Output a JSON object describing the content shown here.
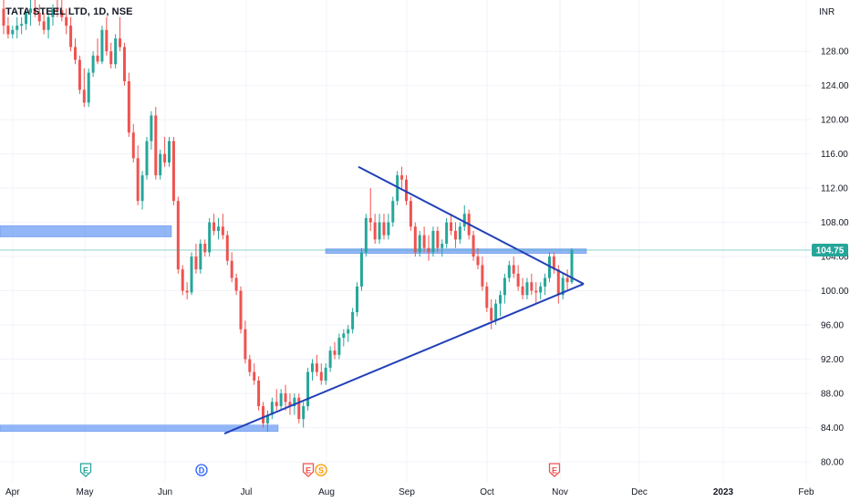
{
  "header": {
    "title": "TATA STEEL LTD, 1D, NSE",
    "currency": "INR"
  },
  "colors": {
    "up": "#26a69a",
    "down": "#ef5350",
    "zone": "#6f9ef4",
    "trendline": "#2140b8",
    "last_price_bg": "#26a69a",
    "last_price_line": "#26a69a"
  },
  "chart_data": {
    "type": "candlestick",
    "symbol": "TATA STEEL LTD",
    "interval": "1D",
    "exchange": "NSE",
    "ylim": [
      78.5,
      134
    ],
    "y_ticks": [
      "128.00",
      "124.00",
      "120.00",
      "116.00",
      "112.00",
      "108.00",
      "104.00",
      "100.00",
      "96.00",
      "92.00",
      "88.00",
      "84.00",
      "80.00"
    ],
    "x_ticks": [
      "Apr",
      "May",
      "Jun",
      "Jul",
      "Aug",
      "Sep",
      "Oct",
      "Nov",
      "Dec",
      "2023",
      "Feb"
    ],
    "last_price": "104.75",
    "events": [
      {
        "date": "May",
        "label": "E"
      },
      {
        "date": "Jun",
        "label": "D"
      },
      {
        "date": "Jul",
        "label": "E"
      },
      {
        "date": "Jul",
        "label": "S"
      },
      {
        "date": "Oct",
        "label": "E"
      }
    ],
    "zones": [
      {
        "from": "Apr",
        "to": "Jun",
        "low": 106.3,
        "high": 107.6
      },
      {
        "from": "Apr",
        "to": "Jul",
        "low": 83.7,
        "high": 84.3
      },
      {
        "from": "Aug",
        "to": "Nov",
        "low": 104.5,
        "high": 104.9
      }
    ],
    "trendlines": [
      {
        "from": [
          "Aug",
          114.5
        ],
        "to": [
          "Nov",
          100.8
        ]
      },
      {
        "from": [
          "Jun",
          83.3
        ],
        "to": [
          "Nov",
          100.8
        ]
      }
    ],
    "candles": [
      [
        133,
        134,
        130,
        131
      ],
      [
        131,
        132,
        129.5,
        130
      ],
      [
        130,
        131,
        129.5,
        130.5
      ],
      [
        130.5,
        132,
        129.5,
        131
      ],
      [
        131,
        132,
        130,
        131.2
      ],
      [
        131.2,
        133,
        130.5,
        132.5
      ],
      [
        132.5,
        134,
        131,
        133
      ],
      [
        133,
        134,
        132,
        132.5
      ],
      [
        132.5,
        133.5,
        131,
        131.5
      ],
      [
        131.5,
        132.5,
        130,
        130.5
      ],
      [
        130.5,
        132.5,
        129.5,
        132
      ],
      [
        132,
        133.5,
        131,
        133
      ],
      [
        133,
        134,
        132,
        132.8
      ],
      [
        132.8,
        134,
        131.5,
        132
      ],
      [
        132,
        133,
        130,
        131
      ],
      [
        131,
        132,
        128,
        128.5
      ],
      [
        128.5,
        129.5,
        126.5,
        127
      ],
      [
        127,
        127.5,
        123,
        123.5
      ],
      [
        123.5,
        126,
        121.5,
        122
      ],
      [
        122,
        126,
        121.5,
        125.5
      ],
      [
        125.5,
        128,
        125,
        127.5
      ],
      [
        127.5,
        129.5,
        126.5,
        126.8
      ],
      [
        126.8,
        131,
        126.5,
        130.5
      ],
      [
        130.5,
        132,
        127.5,
        128
      ],
      [
        128,
        129,
        126,
        126.5
      ],
      [
        126.5,
        130,
        126,
        129.5
      ],
      [
        129.5,
        132,
        128,
        128.5
      ],
      [
        128.5,
        129,
        124,
        124.5
      ],
      [
        124.5,
        125.5,
        118,
        118.5
      ],
      [
        118.5,
        119.5,
        115,
        115.5
      ],
      [
        115.5,
        117,
        110,
        110.5
      ],
      [
        110.5,
        114,
        109.5,
        113.5
      ],
      [
        113.5,
        118,
        113,
        117.5
      ],
      [
        117.5,
        121,
        116.5,
        120.5
      ],
      [
        120.5,
        121.5,
        113,
        113.5
      ],
      [
        113.5,
        116.5,
        113,
        116
      ],
      [
        116,
        118,
        114.5,
        115
      ],
      [
        115,
        118,
        114.5,
        117.5
      ],
      [
        117.5,
        118,
        110,
        110.5
      ],
      [
        110.5,
        111,
        102,
        102.5
      ],
      [
        102.5,
        103,
        99.5,
        100
      ],
      [
        100,
        101,
        99,
        99.8
      ],
      [
        99.8,
        104.5,
        99.5,
        104
      ],
      [
        104,
        105.5,
        102,
        102.5
      ],
      [
        102.5,
        106,
        102,
        105.5
      ],
      [
        105.5,
        106,
        104,
        104.5
      ],
      [
        104.5,
        108.5,
        104,
        108
      ],
      [
        108,
        109,
        106.5,
        107
      ],
      [
        107,
        108.5,
        106,
        107.5
      ],
      [
        107.5,
        109,
        106,
        106.5
      ],
      [
        106.5,
        107,
        103,
        103.5
      ],
      [
        103.5,
        104.5,
        101,
        101.5
      ],
      [
        101.5,
        102,
        99.5,
        100
      ],
      [
        100,
        100.5,
        95,
        95.5
      ],
      [
        95.5,
        96.5,
        91.5,
        92
      ],
      [
        92,
        92.5,
        90,
        90.5
      ],
      [
        90.5,
        91.5,
        89,
        89.5
      ],
      [
        89.5,
        90,
        86,
        86.5
      ],
      [
        86.5,
        87,
        84,
        84.5
      ],
      [
        84.5,
        86,
        83.5,
        85.5
      ],
      [
        85.5,
        87.5,
        85,
        87
      ],
      [
        87,
        88.5,
        86,
        86.5
      ],
      [
        86.5,
        88.5,
        86,
        88
      ],
      [
        88,
        89,
        86,
        87
      ],
      [
        87,
        88,
        85.5,
        86.5
      ],
      [
        86.5,
        88,
        85.5,
        87.5
      ],
      [
        87.5,
        88,
        84.5,
        85
      ],
      [
        85,
        87,
        84,
        86.5
      ],
      [
        86.5,
        91,
        86,
        90.5
      ],
      [
        90.5,
        92,
        89.5,
        91.5
      ],
      [
        91.5,
        92.5,
        90,
        90.5
      ],
      [
        90.5,
        91.5,
        89,
        89.5
      ],
      [
        89.5,
        91.5,
        89,
        91
      ],
      [
        91,
        93.5,
        90.5,
        93
      ],
      [
        93,
        94,
        92,
        92.5
      ],
      [
        92.5,
        95,
        92,
        94.5
      ],
      [
        94.5,
        95.5,
        93.5,
        95
      ],
      [
        95,
        96,
        94,
        95.5
      ],
      [
        95.5,
        98,
        95,
        97.5
      ],
      [
        97.5,
        101,
        97,
        100.5
      ],
      [
        100.5,
        105,
        100,
        104.5
      ],
      [
        104.5,
        109,
        104,
        108.5
      ],
      [
        108.5,
        112,
        107,
        108
      ],
      [
        108,
        109,
        105.5,
        106
      ],
      [
        106,
        109,
        105.5,
        108
      ],
      [
        108,
        109,
        106,
        106.5
      ],
      [
        106.5,
        109,
        106,
        108
      ],
      [
        108,
        111,
        107.5,
        110.5
      ],
      [
        110.5,
        114,
        110,
        113.5
      ],
      [
        113.5,
        114.5,
        112,
        113
      ],
      [
        113,
        113.5,
        110,
        110.5
      ],
      [
        110.5,
        111,
        107,
        107.5
      ],
      [
        107.5,
        108,
        104,
        104.5
      ],
      [
        104.5,
        107,
        104,
        106.5
      ],
      [
        106.5,
        107.5,
        104.5,
        105
      ],
      [
        105,
        106.5,
        103.5,
        104.5
      ],
      [
        104.5,
        107.5,
        104,
        107
      ],
      [
        107,
        107.5,
        104.5,
        105
      ],
      [
        105,
        106,
        104,
        105.5
      ],
      [
        105.5,
        108.5,
        105,
        108
      ],
      [
        108,
        109,
        106.5,
        107
      ],
      [
        107,
        108,
        105,
        106
      ],
      [
        106,
        108,
        105.5,
        107.5
      ],
      [
        107.5,
        110,
        107,
        109
      ],
      [
        109,
        109.5,
        106,
        106.5
      ],
      [
        106.5,
        107,
        103.5,
        104
      ],
      [
        104,
        105,
        102.5,
        103
      ],
      [
        103,
        104,
        100,
        100.5
      ],
      [
        100.5,
        101,
        97.5,
        98
      ],
      [
        98,
        99,
        95.5,
        96.5
      ],
      [
        96.5,
        99,
        96,
        98.5
      ],
      [
        98.5,
        100,
        97,
        99.5
      ],
      [
        99.5,
        102,
        98.5,
        101.5
      ],
      [
        101.5,
        103.5,
        101,
        103
      ],
      [
        103,
        104,
        101.5,
        102
      ],
      [
        102,
        103,
        100,
        100.5
      ],
      [
        100.5,
        101.5,
        99,
        99.5
      ],
      [
        99.5,
        101.5,
        99,
        101
      ],
      [
        101,
        102,
        99.5,
        100
      ],
      [
        100,
        101,
        98.5,
        99.8
      ],
      [
        99.8,
        101,
        99,
        100.5
      ],
      [
        100.5,
        102,
        99.5,
        101.5
      ],
      [
        101.5,
        104.5,
        101,
        104
      ],
      [
        104,
        104.5,
        102,
        102.5
      ],
      [
        102.5,
        103,
        98.5,
        99.5
      ],
      [
        99.5,
        102,
        99,
        101.5
      ],
      [
        101.5,
        102.5,
        100,
        101
      ],
      [
        101,
        105,
        100.8,
        104.75
      ]
    ]
  }
}
